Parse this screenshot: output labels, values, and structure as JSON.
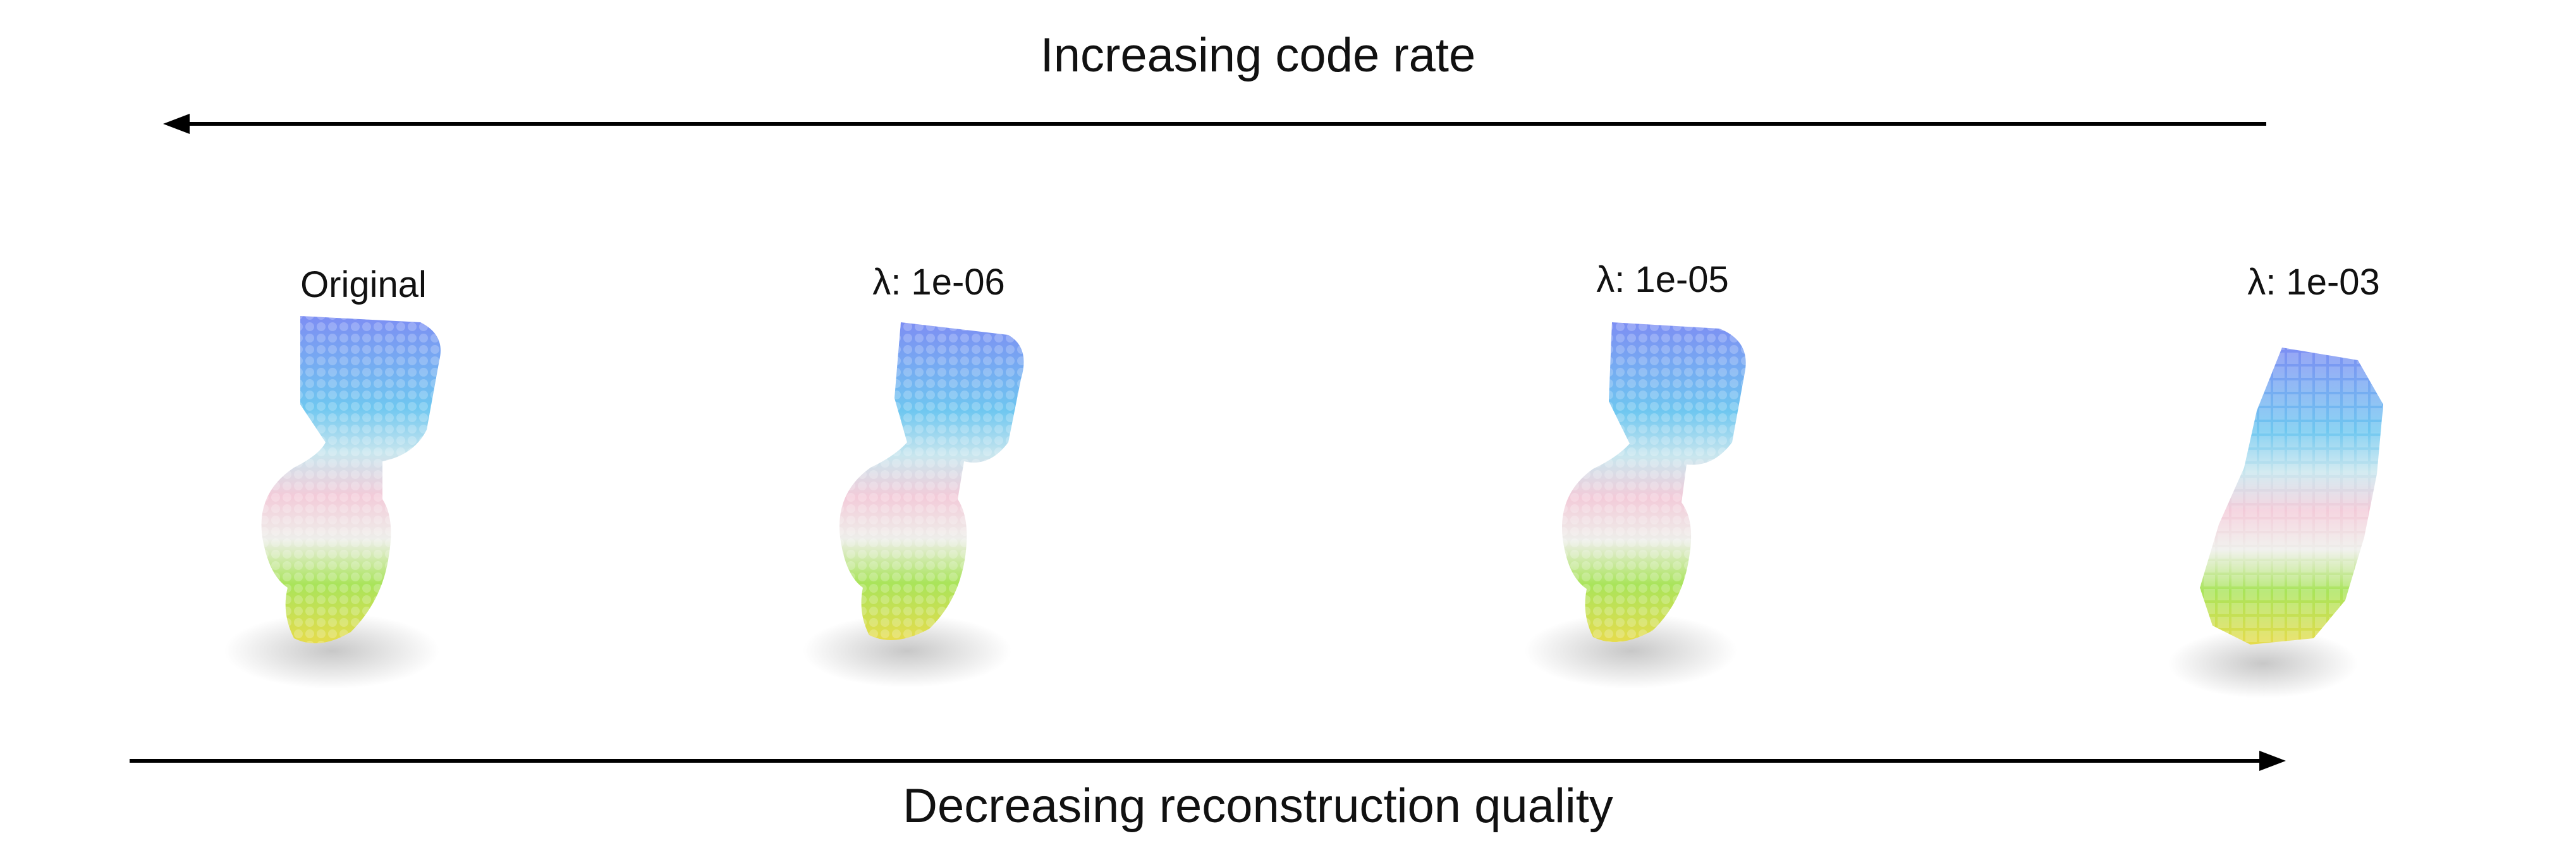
{
  "top_caption": "Increasing code rate",
  "bottom_caption": "Decreasing reconstruction quality",
  "colors": {
    "arrow": "#000000",
    "cloud_blue": "#7aa7f0",
    "cloud_cyan": "#72e3ea",
    "cloud_pink": "#f1c8d8",
    "cloud_white": "#f1f0ee",
    "cloud_green": "#8fe04d",
    "cloud_yellow": "#e8e25a"
  },
  "panels": [
    {
      "label": "Original"
    },
    {
      "label": "λ: 1e-06"
    },
    {
      "label": "λ: 1e-05"
    },
    {
      "label": "λ: 1e-03"
    }
  ]
}
